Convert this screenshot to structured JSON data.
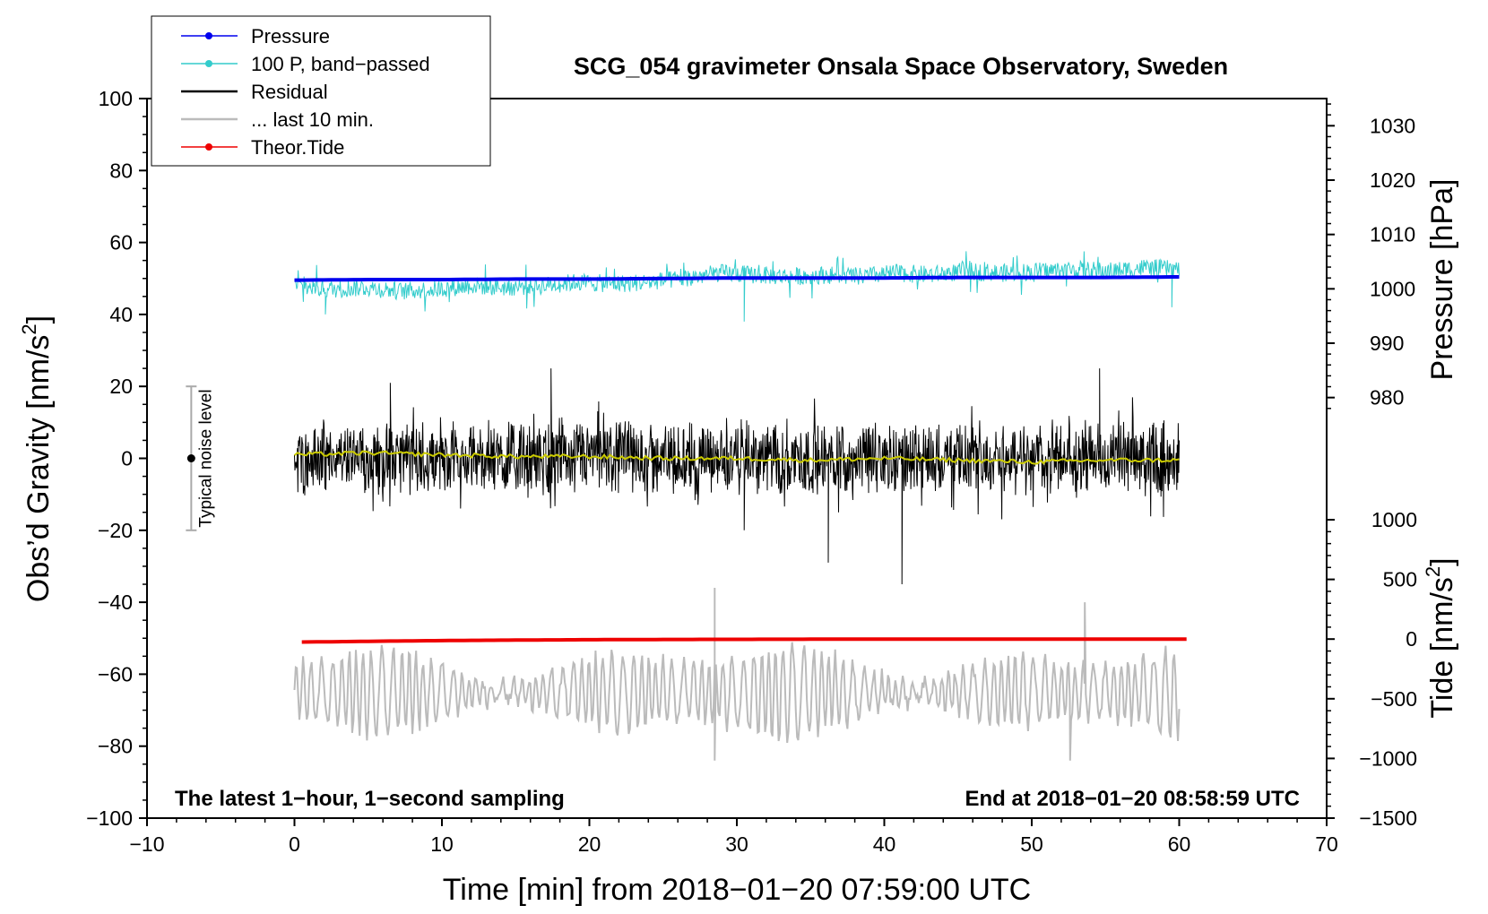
{
  "chart_data": {
    "type": "line",
    "title": "SCG_054 gravimeter Onsala Space Observatory, Sweden",
    "xlabel": "Time [min] from 2018−01−20 07:59:00 UTC",
    "ylabel_left": "Obs’d Gravity [nm/s",
    "ylabel_left_sup": "2",
    "ylabel_left_end": "]",
    "ylabel_right_pressure": "Pressure [hPa]",
    "ylabel_right_tide": "Tide [nm/s",
    "ylabel_right_tide_sup": "2",
    "ylabel_right_tide_end": "]",
    "xlim": [
      -10,
      70
    ],
    "ylim_left": [
      -100,
      100
    ],
    "pressure_axis": {
      "data_min": 975,
      "data_max": 1035
    },
    "tide_axis": {
      "data_min": -1500,
      "data_max": 1000
    },
    "x_ticks": [
      {
        "value": -10,
        "label": "−10"
      },
      {
        "value": 0,
        "label": "0"
      },
      {
        "value": 10,
        "label": "10"
      },
      {
        "value": 20,
        "label": "20"
      },
      {
        "value": 30,
        "label": "30"
      },
      {
        "value": 40,
        "label": "40"
      },
      {
        "value": 50,
        "label": "50"
      },
      {
        "value": 60,
        "label": "60"
      },
      {
        "value": 70,
        "label": "70"
      }
    ],
    "y_ticks_left": [
      {
        "value": 100,
        "label": "100"
      },
      {
        "value": 80,
        "label": "80"
      },
      {
        "value": 60,
        "label": "60"
      },
      {
        "value": 40,
        "label": "40"
      },
      {
        "value": 20,
        "label": "20"
      },
      {
        "value": 0,
        "label": "0"
      },
      {
        "value": -20,
        "label": "−20"
      },
      {
        "value": -40,
        "label": "−40"
      },
      {
        "value": -60,
        "label": "−60"
      },
      {
        "value": -80,
        "label": "−80"
      },
      {
        "value": -100,
        "label": "−100"
      }
    ],
    "y_ticks_pressure": [
      {
        "value": 1030,
        "label": "1030"
      },
      {
        "value": 1020,
        "label": "1020"
      },
      {
        "value": 1010,
        "label": "1010"
      },
      {
        "value": 1000,
        "label": "1000"
      },
      {
        "value": 990,
        "label": "990"
      },
      {
        "value": 980,
        "label": "980"
      }
    ],
    "y_ticks_tide": [
      {
        "value": 1000,
        "label": "1000"
      },
      {
        "value": 500,
        "label": "500"
      },
      {
        "value": 0,
        "label": "0"
      },
      {
        "value": -500,
        "label": "−500"
      },
      {
        "value": -1000,
        "label": "−1000"
      },
      {
        "value": -1500,
        "label": "−1500"
      }
    ],
    "legend_position": "top-left",
    "legend": [
      {
        "label": "Pressure",
        "color": "#0000ee",
        "marker": true
      },
      {
        "label": "100 P, band−passed",
        "color": "#33cccc",
        "marker": true
      },
      {
        "label": "Residual",
        "color": "#000000",
        "marker": false
      },
      {
        "label": "... last 10 min.",
        "color": "#bbbbbb",
        "marker": false
      },
      {
        "label": "Theor.Tide",
        "color": "#ee0000",
        "marker": true
      }
    ],
    "noise_bar": {
      "label": "Typical noise level",
      "x": -7,
      "center": 0,
      "low": -20,
      "high": 20
    },
    "annotations": {
      "left": "The latest 1−hour, 1−second sampling",
      "right": "End at 2018−01−20 08:58:59 UTC"
    },
    "series": [
      {
        "name": "Pressure",
        "color": "#0000ee",
        "axis": "pressure",
        "x_range": [
          0,
          60
        ],
        "values": [
          1001.6,
          1001.7,
          1001.7,
          1001.8,
          1001.8,
          1001.9,
          1002.0,
          1002.0,
          1002.0,
          1002.1,
          1002.1,
          1002.1,
          1002.2
        ]
      },
      {
        "name": "100 P, band−passed",
        "color": "#33cccc",
        "axis": "left",
        "x_range": [
          0,
          60
        ],
        "values": [
          48,
          47,
          47.5,
          46.5,
          47,
          48,
          47.5,
          48,
          49,
          48.5,
          49,
          50,
          51.5,
          51,
          50.5,
          51,
          50.5,
          51.5,
          51,
          52,
          51.5,
          52,
          52.5,
          52,
          53,
          52.5
        ],
        "amplitude": 2.5
      },
      {
        "name": "Residual",
        "color": "#000000",
        "axis": "left",
        "x_range": [
          0,
          60
        ],
        "values": [
          0,
          0,
          0,
          0,
          0,
          0,
          0,
          0,
          0,
          0,
          0,
          0,
          0,
          0
        ],
        "amplitude": 8,
        "extremes": [
          [
            17.4,
            25
          ],
          [
            41.2,
            -35
          ],
          [
            36.2,
            -29
          ],
          [
            54.6,
            25
          ],
          [
            30.5,
            -20
          ],
          [
            6.5,
            21
          ]
        ]
      },
      {
        "name": "Residual running mean",
        "color": "#cccc00",
        "axis": "left",
        "x_range": [
          0,
          60
        ],
        "values": [
          1,
          1.5,
          1,
          0.5,
          0.5,
          0,
          0,
          -0.5,
          0,
          -0.5,
          -1,
          -0.5,
          -0.5
        ]
      },
      {
        "name": "... last 10 min.",
        "color": "#bbbbbb",
        "axis": "left",
        "x_range": [
          0,
          60
        ],
        "baseline": -65,
        "amplitude": 14,
        "extremes": [
          [
            28.5,
            -36
          ],
          [
            28.5,
            -84
          ],
          [
            52.6,
            -84
          ],
          [
            53.6,
            -40
          ]
        ]
      },
      {
        "name": "Theor.Tide",
        "color": "#ee0000",
        "axis": "tide",
        "x_range": [
          0.5,
          60.5
        ],
        "values": [
          -25,
          -18,
          -12,
          -8,
          -5,
          -3,
          -2,
          -1,
          0,
          0,
          0,
          0,
          0
        ]
      }
    ]
  }
}
